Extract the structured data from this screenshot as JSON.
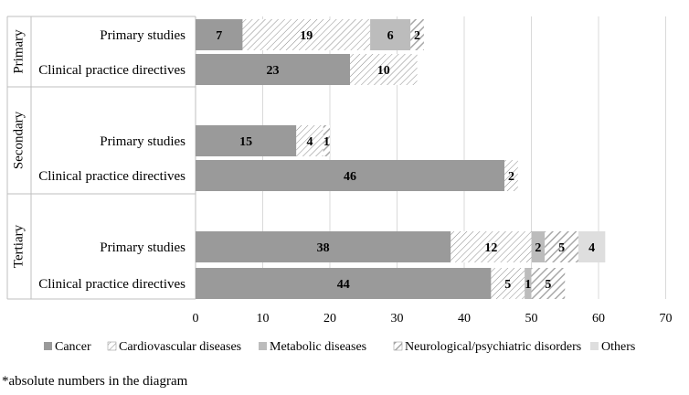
{
  "chart_data": {
    "type": "bar",
    "orientation": "horizontal",
    "stacked": true,
    "groups": [
      {
        "label": "Primary",
        "rows": [
          {
            "label": "Primary studies",
            "values": [
              7,
              19,
              6,
              2,
              null
            ]
          },
          {
            "label": "Clinical practice directives",
            "values": [
              23,
              10,
              null,
              null,
              null
            ]
          }
        ]
      },
      {
        "label": "Secondary",
        "rows": [
          {
            "label": "Primary studies",
            "values": [
              15,
              4,
              null,
              1,
              null
            ]
          },
          {
            "label": "Clinical practice directives",
            "values": [
              46,
              2,
              null,
              null,
              null
            ]
          }
        ]
      },
      {
        "label": "Tertiary",
        "rows": [
          {
            "label": "Primary studies",
            "values": [
              38,
              12,
              2,
              5,
              4
            ]
          },
          {
            "label": "Clinical practice directives",
            "values": [
              44,
              5,
              1,
              5,
              null
            ]
          }
        ]
      }
    ],
    "series": [
      {
        "name": "Cancer",
        "color": "#9a9a9a",
        "pattern": "solid"
      },
      {
        "name": "Cardiovascular diseases",
        "color": "#8a8a8a",
        "pattern": "diagonal-thin"
      },
      {
        "name": "Metabolic diseases",
        "color": "#bcbcbc",
        "pattern": "solid"
      },
      {
        "name": "Neurological/psychiatric disorders",
        "color": "#a8a8a8",
        "pattern": "diagonal-thick"
      },
      {
        "name": "Others",
        "color": "#dedede",
        "pattern": "solid"
      }
    ],
    "xlim": [
      0,
      70
    ],
    "xticks": [
      0,
      10,
      20,
      30,
      40,
      50,
      60,
      70
    ],
    "grid": true,
    "legend": "bottom"
  },
  "footnote": "*absolute numbers in the diagram"
}
